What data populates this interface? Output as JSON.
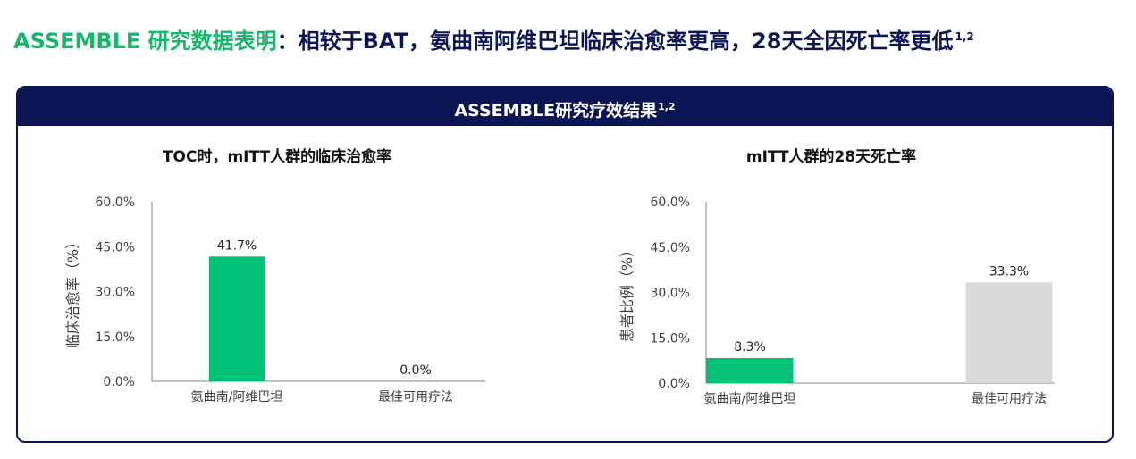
{
  "headline": {
    "part_green": "ASSEMBLE 研究数据表明",
    "part_navy": "：相较于BAT，氨曲南阿维巴坦临床治愈率更高，28天全因死亡率更低",
    "sup": "1,2"
  },
  "panel": {
    "title": "ASSEMBLE研究疗效结果",
    "sup": "1,2"
  },
  "colors": {
    "navy": "#0b1553",
    "green": "#16b86c",
    "bar_green": "#00c176",
    "bar_gray": "#d9d9d9"
  },
  "chart_data": [
    {
      "type": "bar",
      "title": "TOC时，mITT人群的临床治愈率",
      "ylabel": "临床治愈率（%）",
      "xlabel": "",
      "categories": [
        "氨曲南/阿维巴坦",
        "最佳可用疗法"
      ],
      "values": [
        41.7,
        0.0
      ],
      "data_labels": [
        "41.7%",
        "0.0%"
      ],
      "bar_colors": [
        "#00c176",
        "#d9d9d9"
      ],
      "ylim": [
        0,
        60
      ],
      "yticks": [
        0,
        15,
        30,
        45,
        60
      ],
      "ytick_labels": [
        "0.0%",
        "15.0%",
        "30.0%",
        "45.0%",
        "60.0%"
      ],
      "grid": false
    },
    {
      "type": "bar",
      "title": "mITT人群的28天死亡率",
      "ylabel": "患者比例（%）",
      "xlabel": "",
      "categories": [
        "氨曲南/阿维巴坦",
        "最佳可用疗法"
      ],
      "values": [
        8.3,
        33.3
      ],
      "data_labels": [
        "8.3%",
        "33.3%"
      ],
      "bar_colors": [
        "#00c176",
        "#d9d9d9"
      ],
      "ylim": [
        0,
        60
      ],
      "yticks": [
        0,
        15,
        30,
        45,
        60
      ],
      "ytick_labels": [
        "0.0%",
        "15.0%",
        "30.0%",
        "45.0%",
        "60.0%"
      ],
      "grid": false
    }
  ]
}
